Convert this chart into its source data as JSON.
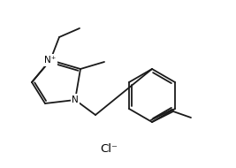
{
  "background_color": "#ffffff",
  "line_color": "#1a1a1a",
  "line_width": 1.3,
  "text_color": "#000000",
  "cl_minus_text": "Cl⁻",
  "n_plus_text": "N⁺",
  "n_text": "N",
  "figsize": [
    2.67,
    1.9
  ],
  "dpi": 100,
  "font_size": 7.5
}
